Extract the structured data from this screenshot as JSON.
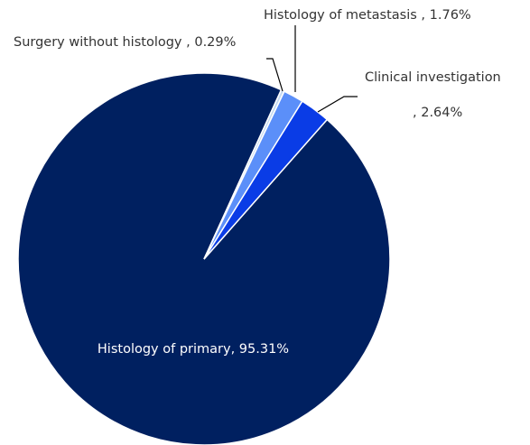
{
  "chart_data": {
    "type": "pie",
    "categories": [
      "Histology of primary",
      "Surgery without histology",
      "Histology of metastasis",
      "Clinical investigation"
    ],
    "values": [
      95.31,
      0.29,
      1.76,
      2.64
    ],
    "value_labels": [
      ", 95.31%",
      " , 0.29%",
      " , 1.76%",
      ", 2.64%"
    ],
    "colors": [
      "#002060",
      "#c5d9f1",
      "#5b8ff9",
      "#0a3ce6"
    ]
  }
}
